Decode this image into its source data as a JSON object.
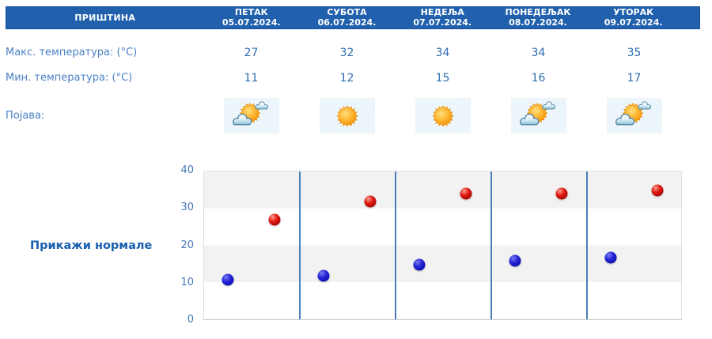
{
  "location": "ПРИШТИНА",
  "header": {
    "days": [
      {
        "name": "ПЕТАК",
        "date": "05.07.2024."
      },
      {
        "name": "СУБОТА",
        "date": "06.07.2024."
      },
      {
        "name": "НЕДЕЉА",
        "date": "07.07.2024."
      },
      {
        "name": "ПОНЕДЕЉАК",
        "date": "08.07.2024."
      },
      {
        "name": "УТОРАК",
        "date": "09.07.2024."
      }
    ]
  },
  "rows": {
    "max": {
      "label": "Макс. температура: (°C)",
      "values": [
        "27",
        "32",
        "34",
        "34",
        "35"
      ]
    },
    "min": {
      "label": "Мин. температура: (°C)",
      "values": [
        "11",
        "12",
        "15",
        "16",
        "17"
      ]
    },
    "phenomena": {
      "label": "Појава:",
      "icons": [
        "partly-cloudy",
        "sunny",
        "sunny",
        "partly-cloudy",
        "partly-cloudy"
      ]
    }
  },
  "actions": {
    "show_normals": "Прикажи нормале"
  },
  "chart_data": {
    "type": "scatter",
    "categories": [
      "05.07.2024.",
      "06.07.2024.",
      "07.07.2024.",
      "08.07.2024.",
      "09.07.2024."
    ],
    "series": [
      {
        "name": "Макс. температура (°C)",
        "key": "max",
        "color": "#d01510",
        "values": [
          27,
          32,
          34,
          34,
          35
        ]
      },
      {
        "name": "Мин. температура (°C)",
        "key": "min",
        "color": "#1515cc",
        "values": [
          11,
          12,
          15,
          16,
          17
        ]
      }
    ],
    "ylim": [
      0,
      40
    ],
    "yticks": [
      0,
      10,
      20,
      30,
      40
    ],
    "grid": "horizontal-bands",
    "legend": "none"
  },
  "colors": {
    "header_bg": "#2060ad",
    "label_text": "#4a80c4",
    "value_text": "#2e6cb0",
    "link_text": "#1a5fb0",
    "tick_text": "#4679bd",
    "divider": "#4a7ebb",
    "band": "#f2f2f2",
    "tile_bg": "#e8f3fa",
    "dot_max": "#d01510",
    "dot_min": "#1515cc"
  }
}
